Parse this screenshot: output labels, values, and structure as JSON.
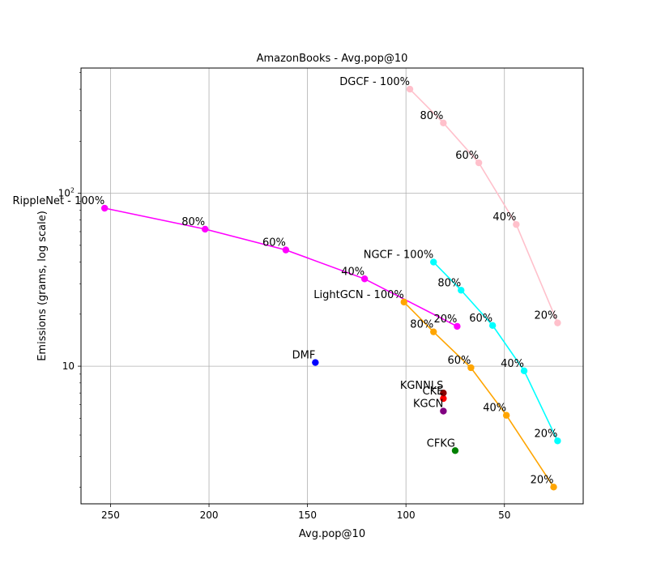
{
  "chart_data": {
    "type": "scatter",
    "title": "AmazonBooks - Avg.pop@10",
    "xlabel": "Avg.pop@10",
    "ylabel": "Emissions (grams, log scale)",
    "xlim": [
      265,
      10
    ],
    "x_inverted": true,
    "y_scale": "log",
    "ylim": [
      1.6,
      530
    ],
    "grid": true,
    "x_ticks": [
      250,
      200,
      150,
      100,
      50
    ],
    "y_ticks": [
      {
        "value": 10,
        "label": "10"
      },
      {
        "value": 100,
        "label": "10²"
      }
    ],
    "series": [
      {
        "color": "#ff00ff",
        "line": true,
        "points": [
          {
            "x": 253,
            "y": 82,
            "label": "RippleNet - 100%"
          },
          {
            "x": 202,
            "y": 62,
            "label": "80%"
          },
          {
            "x": 161,
            "y": 47,
            "label": "60%"
          },
          {
            "x": 121,
            "y": 32,
            "label": "40%"
          },
          {
            "x": 74,
            "y": 17,
            "label": "20%"
          }
        ]
      },
      {
        "color": "#ffc0cb",
        "line": true,
        "points": [
          {
            "x": 98,
            "y": 400,
            "label": "DGCF - 100%"
          },
          {
            "x": 81,
            "y": 255,
            "label": "80%"
          },
          {
            "x": 63,
            "y": 150,
            "label": "60%"
          },
          {
            "x": 44,
            "y": 66,
            "label": "40%"
          },
          {
            "x": 23,
            "y": 17.8,
            "label": "20%"
          }
        ]
      },
      {
        "color": "#00ffff",
        "line": true,
        "points": [
          {
            "x": 86,
            "y": 40,
            "label": "NGCF - 100%"
          },
          {
            "x": 72,
            "y": 27.5,
            "label": "80%"
          },
          {
            "x": 56,
            "y": 17.2,
            "label": "60%"
          },
          {
            "x": 40,
            "y": 9.4,
            "label": "40%"
          },
          {
            "x": 23,
            "y": 3.7,
            "label": "20%"
          }
        ]
      },
      {
        "color": "#ffa500",
        "line": true,
        "points": [
          {
            "x": 101,
            "y": 23.5,
            "label": "LightGCN - 100%"
          },
          {
            "x": 86,
            "y": 15.8,
            "label": "80%"
          },
          {
            "x": 67,
            "y": 9.8,
            "label": "60%"
          },
          {
            "x": 49,
            "y": 5.2,
            "label": "40%"
          },
          {
            "x": 25,
            "y": 2.0,
            "label": "20%"
          }
        ]
      },
      {
        "color": "#0000ff",
        "line": false,
        "points": [
          {
            "x": 146,
            "y": 10.5,
            "label": "DMF"
          }
        ]
      },
      {
        "color": "#ff0000",
        "line": false,
        "points": [
          {
            "x": 81,
            "y": 6.5,
            "label": "CKE"
          }
        ]
      },
      {
        "color": "#8b0000",
        "line": false,
        "points": [
          {
            "x": 81,
            "y": 7.0,
            "label": "KGNNLS"
          }
        ]
      },
      {
        "color": "#800080",
        "line": false,
        "points": [
          {
            "x": 81,
            "y": 5.5,
            "label": "KGCN"
          }
        ]
      },
      {
        "color": "#008000",
        "line": false,
        "points": [
          {
            "x": 75,
            "y": 3.25,
            "label": "CFKG"
          }
        ]
      }
    ]
  }
}
